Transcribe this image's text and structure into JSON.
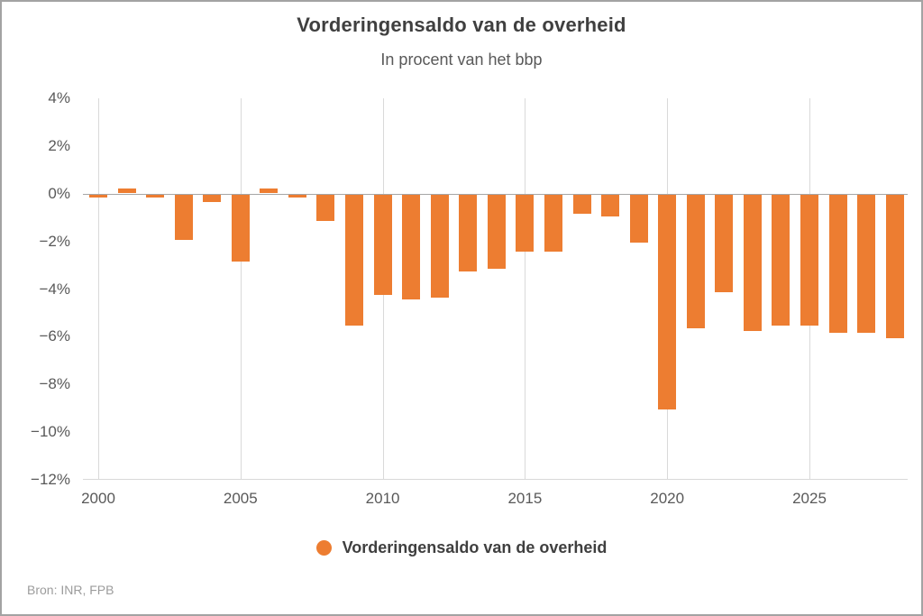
{
  "header": {
    "title": "Vorderingensaldo van de overheid",
    "subtitle": "In procent van het bbp"
  },
  "chart_data": {
    "type": "bar",
    "title": "Vorderingensaldo van de overheid",
    "subtitle": "In procent van het bbp",
    "unit": "% van het bbp",
    "x": [
      2000,
      2001,
      2002,
      2003,
      2004,
      2005,
      2006,
      2007,
      2008,
      2009,
      2010,
      2011,
      2012,
      2013,
      2014,
      2015,
      2016,
      2017,
      2018,
      2019,
      2020,
      2021,
      2022,
      2023,
      2024,
      2025,
      2026,
      2027,
      2028
    ],
    "values": [
      -0.1,
      0.2,
      -0.1,
      -1.9,
      -0.3,
      -2.8,
      0.2,
      -0.1,
      -1.1,
      -5.5,
      -4.2,
      -4.4,
      -4.3,
      -3.2,
      -3.1,
      -2.4,
      -2.4,
      -0.8,
      -0.9,
      -2.0,
      -9.0,
      -5.6,
      -4.1,
      -5.7,
      -5.5,
      -5.5,
      -5.8,
      -5.8,
      -6.0
    ],
    "series_name": "Vorderingensaldo van de overheid",
    "ylim": [
      -12,
      4
    ],
    "yticks": [
      4,
      2,
      0,
      -2,
      -4,
      -6,
      -8,
      -10,
      -12
    ],
    "ytick_labels": [
      "4%",
      "2%",
      "0%",
      "−2%",
      "−4%",
      "−6%",
      "−8%",
      "−10%",
      "−12%"
    ],
    "xticks": [
      2000,
      2005,
      2010,
      2015,
      2020,
      2025
    ],
    "xtick_labels": [
      "2000",
      "2005",
      "2010",
      "2015",
      "2020",
      "2025"
    ],
    "grid": "vertical-only",
    "legend_position": "bottom",
    "bar_color": "#ed7d31",
    "zero_line_color": "#a6a6a6",
    "grid_color": "#d9d9d9"
  },
  "legend": {
    "label": "Vorderingensaldo van de overheid",
    "marker": "circle",
    "marker_color": "#ed7d31"
  },
  "source": {
    "text": "Bron: INR, FPB"
  },
  "colors": {
    "accent_orange": "#ed7d31",
    "title_text": "#3f3f3f",
    "axis_text": "#595959",
    "source_text": "#9c9c9c",
    "gridline": "#d9d9d9",
    "zero_line": "#a6a6a6",
    "frame_border": "#a3a3a3"
  }
}
